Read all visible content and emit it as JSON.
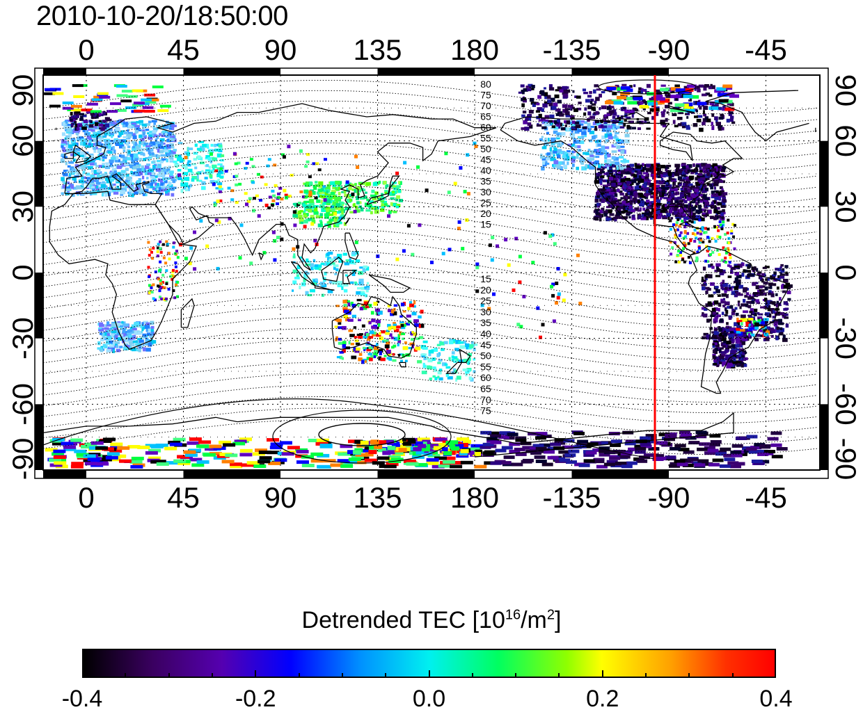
{
  "timestamp": "2010-10-20/18:50:00",
  "map": {
    "lon_ticks": [
      "0",
      "45",
      "90",
      "135",
      "180",
      "-135",
      "-90",
      "-45"
    ],
    "lat_ticks": [
      "90",
      "60",
      "30",
      "0",
      "-30",
      "-60",
      "-90"
    ],
    "contour_labels_north": [
      "80",
      "75",
      "70",
      "65",
      "60",
      "55",
      "50",
      "45",
      "40",
      "35",
      "30",
      "25",
      "20",
      "15"
    ],
    "contour_labels_south": [
      "15",
      "20",
      "25",
      "30",
      "35",
      "40",
      "45",
      "50",
      "55",
      "60",
      "65",
      "70",
      "75"
    ],
    "terminator_color": "#ff0000"
  },
  "colorbar": {
    "title": "Detrended TEC  [10",
    "title_exp1": "16",
    "title_mid": "/m",
    "title_exp2": "2",
    "title_end": "]",
    "labels": [
      "-0.4",
      "-0.2",
      "0.0",
      "0.2",
      "0.4"
    ],
    "range": [
      -0.4,
      0.4
    ]
  }
}
